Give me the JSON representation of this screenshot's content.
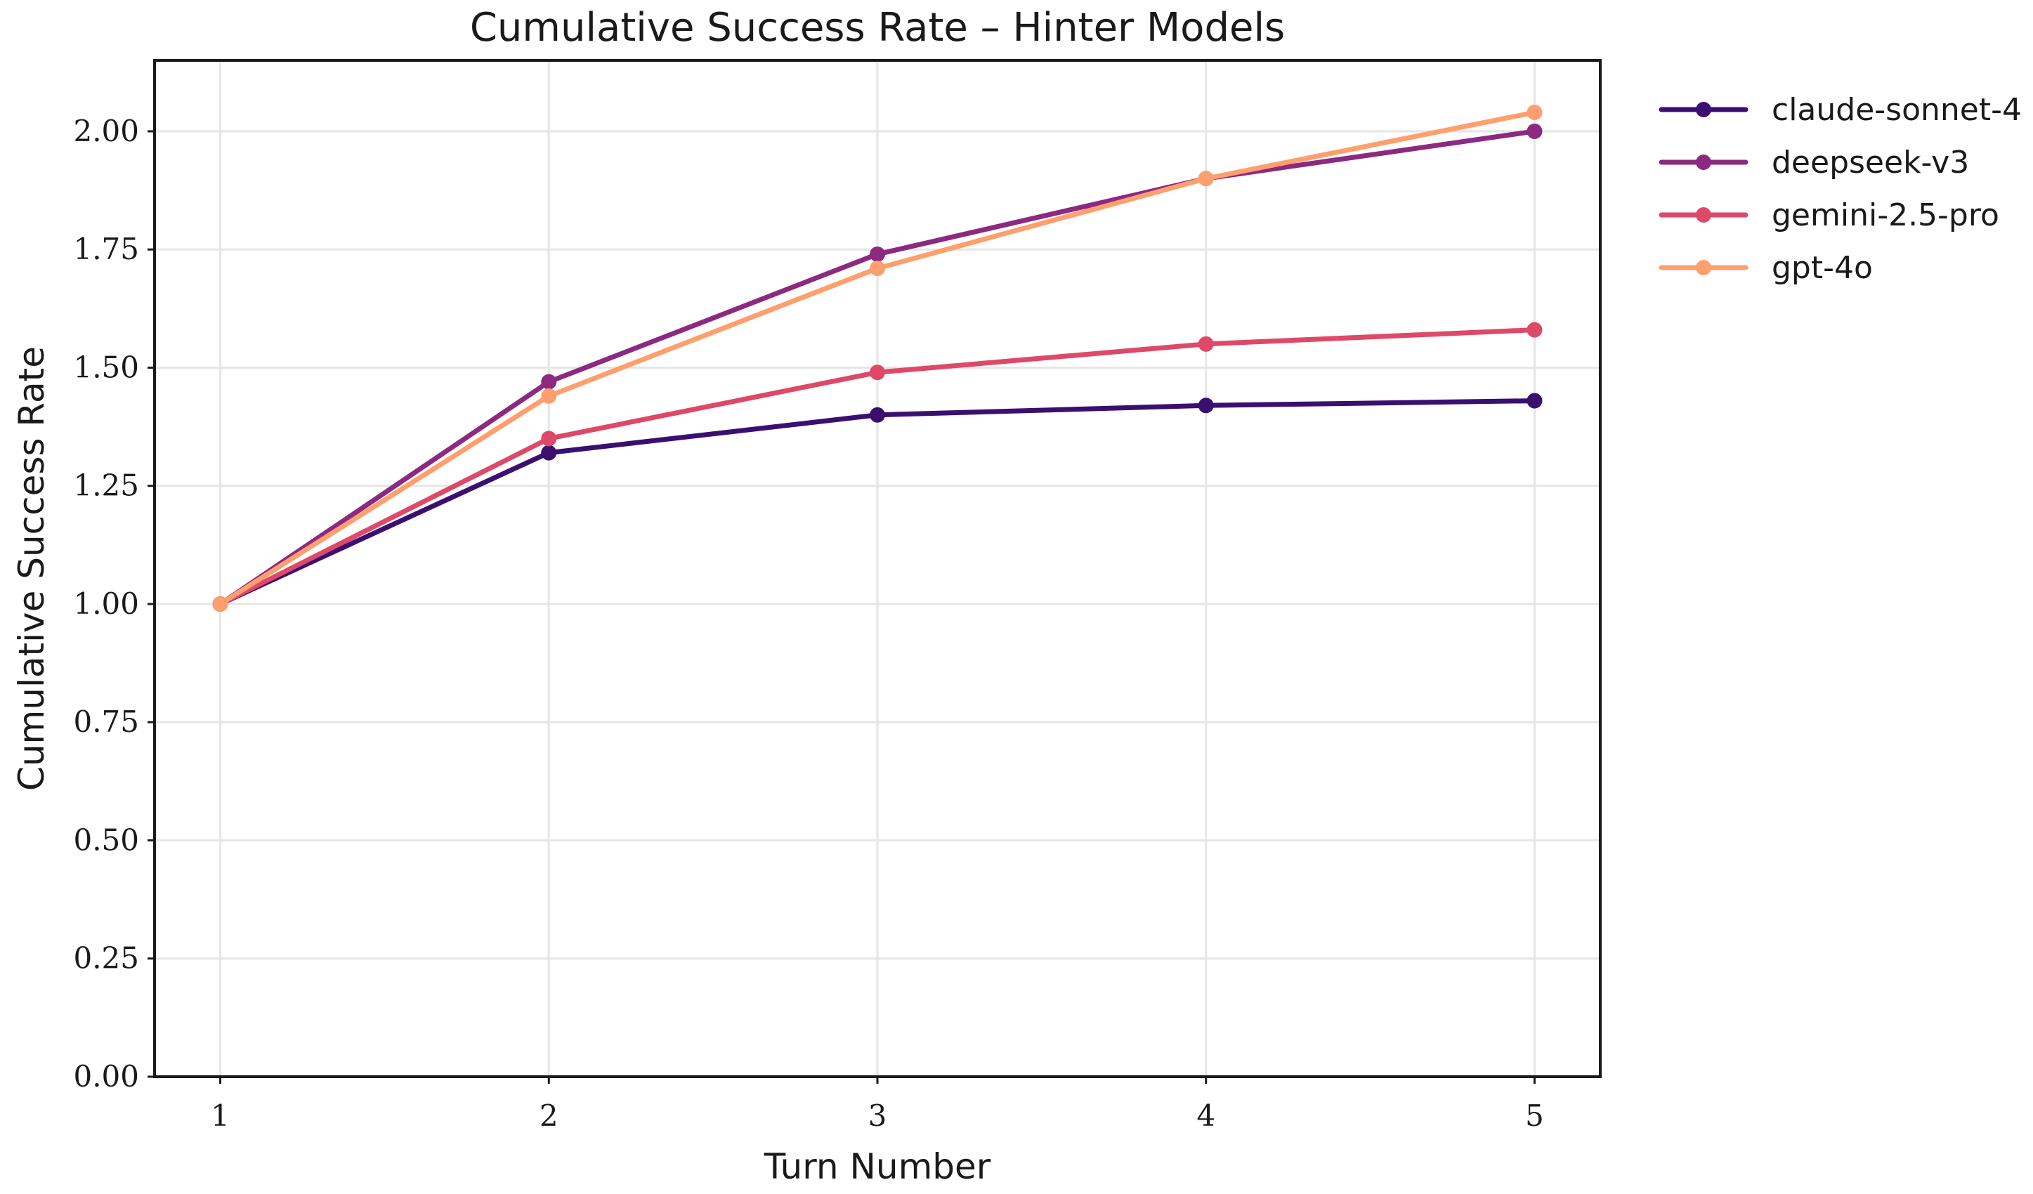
{
  "chart_data": {
    "type": "line",
    "title": "Cumulative Success Rate – Hinter Models",
    "xlabel": "Turn Number",
    "ylabel": "Cumulative Success Rate",
    "x": [
      1,
      2,
      3,
      4,
      5
    ],
    "x_tick_labels": [
      "1",
      "2",
      "3",
      "4",
      "5"
    ],
    "xlim": [
      0.8,
      5.2
    ],
    "ylim": [
      0.0,
      2.15
    ],
    "y_ticks": [
      0.0,
      0.25,
      0.5,
      0.75,
      1.0,
      1.25,
      1.5,
      1.75,
      2.0
    ],
    "y_tick_labels": [
      "0.00",
      "0.25",
      "0.50",
      "0.75",
      "1.00",
      "1.25",
      "1.50",
      "1.75",
      "2.00"
    ],
    "grid": true,
    "legend_position": "outside-top-right",
    "series": [
      {
        "name": "claude-sonnet-4",
        "color": "#3b0f70",
        "values": [
          1.0,
          1.32,
          1.4,
          1.42,
          1.43
        ]
      },
      {
        "name": "deepseek-v3",
        "color": "#8c2981",
        "values": [
          1.0,
          1.47,
          1.74,
          1.9,
          2.0
        ]
      },
      {
        "name": "gemini-2.5-pro",
        "color": "#de4968",
        "values": [
          1.0,
          1.35,
          1.49,
          1.55,
          1.58
        ]
      },
      {
        "name": "gpt-4o",
        "color": "#fe9f6d",
        "values": [
          1.0,
          1.44,
          1.71,
          1.9,
          2.04
        ]
      }
    ]
  }
}
